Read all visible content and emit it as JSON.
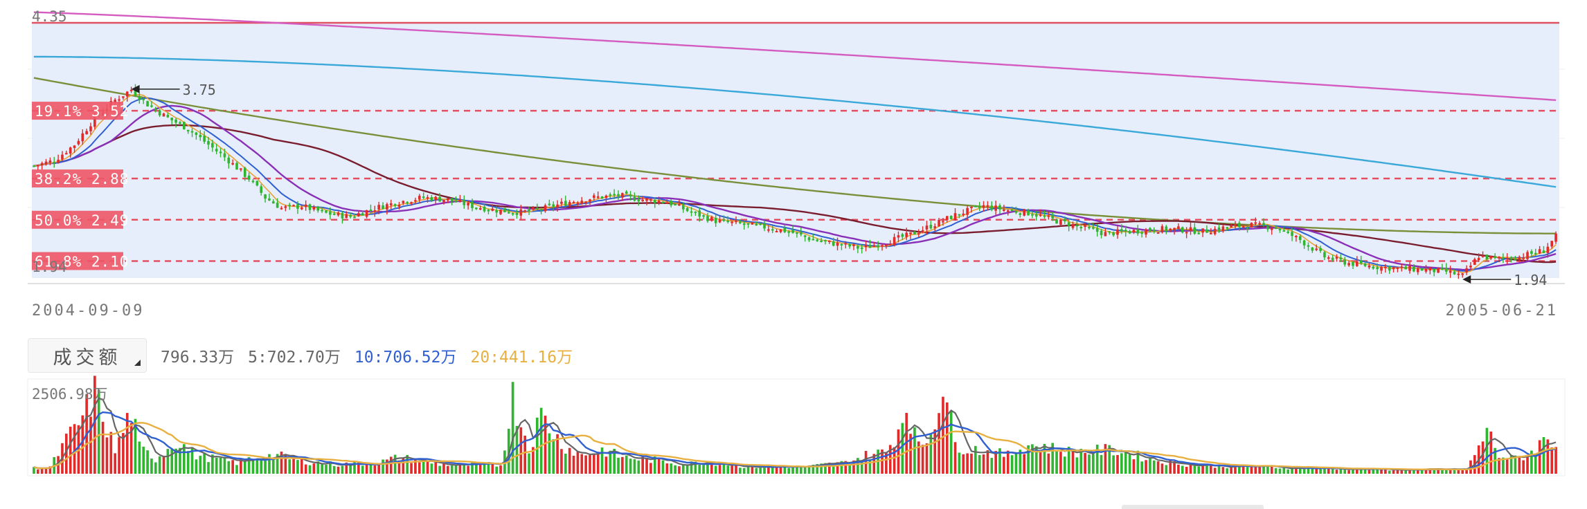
{
  "chart_data": {
    "type": "candlestick",
    "x_range": [
      "2004-09-09",
      "2005-06-21"
    ],
    "date_labels": {
      "start": "2004-09-09",
      "end": "2005-06-21"
    },
    "price_axis": {
      "max_label": "4.35",
      "min_label": "1.94",
      "ylim": [
        1.94,
        4.35
      ]
    },
    "annotations": {
      "high": "3.75",
      "low": "1.94"
    },
    "fib_levels": [
      {
        "label": "19.1% 3.52",
        "value": 3.52
      },
      {
        "label": "38.2% 2.88",
        "value": 2.88
      },
      {
        "label": "50.0% 2.49",
        "value": 2.49
      },
      {
        "label": "61.8% 2.10",
        "value": 2.1
      }
    ],
    "top_line": {
      "value": 4.35
    },
    "colors": {
      "up": "#e02b2b",
      "down": "#2fb52f",
      "fib": "#e05060",
      "band": "#e6eefb",
      "ma_pink": "#d45bbf",
      "ma_cyan": "#3aa8d8",
      "ma_olive": "#7a8f3a",
      "ma_maroon": "#7a1d2e",
      "ma_purple": "#8a2fb8",
      "ma_blue": "#2f5fd1",
      "ma_orange": "#e8a235",
      "vol_gray": "#666666",
      "vol_blue": "#2f5fd1",
      "vol_orange": "#e8b040"
    },
    "candle_anchors": [
      [
        0,
        3.0
      ],
      [
        5,
        3.05
      ],
      [
        10,
        3.2
      ],
      [
        15,
        3.45
      ],
      [
        20,
        3.62
      ],
      [
        24,
        3.72
      ],
      [
        28,
        3.58
      ],
      [
        33,
        3.45
      ],
      [
        38,
        3.35
      ],
      [
        43,
        3.2
      ],
      [
        48,
        3.05
      ],
      [
        53,
        2.88
      ],
      [
        57,
        2.7
      ],
      [
        61,
        2.6
      ],
      [
        66,
        2.62
      ],
      [
        72,
        2.55
      ],
      [
        78,
        2.52
      ],
      [
        84,
        2.6
      ],
      [
        90,
        2.66
      ],
      [
        96,
        2.7
      ],
      [
        102,
        2.68
      ],
      [
        108,
        2.62
      ],
      [
        114,
        2.58
      ],
      [
        120,
        2.56
      ],
      [
        126,
        2.6
      ],
      [
        132,
        2.66
      ],
      [
        138,
        2.7
      ],
      [
        144,
        2.72
      ],
      [
        150,
        2.68
      ],
      [
        156,
        2.66
      ],
      [
        162,
        2.56
      ],
      [
        168,
        2.48
      ],
      [
        174,
        2.45
      ],
      [
        180,
        2.42
      ],
      [
        186,
        2.38
      ],
      [
        192,
        2.3
      ],
      [
        198,
        2.26
      ],
      [
        204,
        2.22
      ],
      [
        210,
        2.28
      ],
      [
        216,
        2.35
      ],
      [
        222,
        2.45
      ],
      [
        228,
        2.55
      ],
      [
        234,
        2.62
      ],
      [
        240,
        2.58
      ],
      [
        246,
        2.55
      ],
      [
        252,
        2.48
      ],
      [
        258,
        2.42
      ],
      [
        264,
        2.36
      ],
      [
        270,
        2.38
      ],
      [
        276,
        2.4
      ],
      [
        282,
        2.4
      ],
      [
        288,
        2.38
      ],
      [
        294,
        2.42
      ],
      [
        300,
        2.44
      ],
      [
        306,
        2.42
      ],
      [
        312,
        2.3
      ],
      [
        318,
        2.14
      ],
      [
        324,
        2.08
      ],
      [
        330,
        2.05
      ],
      [
        336,
        2.03
      ],
      [
        342,
        2.02
      ],
      [
        348,
        2.0
      ],
      [
        352,
        1.96
      ],
      [
        356,
        2.15
      ],
      [
        360,
        2.12
      ],
      [
        366,
        2.14
      ],
      [
        372,
        2.2
      ],
      [
        375,
        2.33
      ]
    ],
    "volume_axis": {
      "max_label": "2506.98万",
      "max": 2506.98
    },
    "volume_header": {
      "button_label": "成交额",
      "current": "796.33万",
      "ma5": "5:702.70万",
      "ma10": "10:706.52万",
      "ma20": "20:441.16万"
    },
    "volume_anchors": [
      [
        0,
        150
      ],
      [
        4,
        180
      ],
      [
        8,
        900
      ],
      [
        12,
        1500
      ],
      [
        15,
        2200
      ],
      [
        17,
        1600
      ],
      [
        20,
        600
      ],
      [
        24,
        1700
      ],
      [
        26,
        700
      ],
      [
        30,
        400
      ],
      [
        35,
        900
      ],
      [
        40,
        500
      ],
      [
        45,
        400
      ],
      [
        50,
        300
      ],
      [
        55,
        450
      ],
      [
        60,
        500
      ],
      [
        65,
        350
      ],
      [
        70,
        300
      ],
      [
        75,
        250
      ],
      [
        80,
        280
      ],
      [
        85,
        300
      ],
      [
        90,
        450
      ],
      [
        95,
        350
      ],
      [
        100,
        260
      ],
      [
        105,
        230
      ],
      [
        110,
        250
      ],
      [
        115,
        230
      ],
      [
        118,
        2100
      ],
      [
        122,
        700
      ],
      [
        125,
        1600
      ],
      [
        130,
        800
      ],
      [
        135,
        500
      ],
      [
        140,
        650
      ],
      [
        145,
        450
      ],
      [
        150,
        400
      ],
      [
        155,
        350
      ],
      [
        160,
        250
      ],
      [
        165,
        320
      ],
      [
        170,
        280
      ],
      [
        175,
        200
      ],
      [
        180,
        180
      ],
      [
        185,
        200
      ],
      [
        190,
        180
      ],
      [
        195,
        250
      ],
      [
        200,
        300
      ],
      [
        205,
        500
      ],
      [
        210,
        600
      ],
      [
        213,
        1200
      ],
      [
        215,
        1900
      ],
      [
        218,
        700
      ],
      [
        221,
        1100
      ],
      [
        224,
        2500
      ],
      [
        227,
        800
      ],
      [
        230,
        700
      ],
      [
        235,
        600
      ],
      [
        240,
        500
      ],
      [
        245,
        800
      ],
      [
        250,
        700
      ],
      [
        255,
        600
      ],
      [
        260,
        600
      ],
      [
        265,
        650
      ],
      [
        270,
        550
      ],
      [
        275,
        400
      ],
      [
        280,
        300
      ],
      [
        285,
        250
      ],
      [
        290,
        220
      ],
      [
        295,
        200
      ],
      [
        300,
        200
      ],
      [
        305,
        180
      ],
      [
        310,
        160
      ],
      [
        315,
        150
      ],
      [
        320,
        140
      ],
      [
        325,
        130
      ],
      [
        330,
        120
      ],
      [
        335,
        110
      ],
      [
        340,
        110
      ],
      [
        345,
        110
      ],
      [
        350,
        120
      ],
      [
        353,
        120
      ],
      [
        356,
        700
      ],
      [
        358,
        1200
      ],
      [
        361,
        500
      ],
      [
        364,
        400
      ],
      [
        368,
        500
      ],
      [
        371,
        800
      ],
      [
        373,
        1000
      ],
      [
        375,
        796
      ]
    ]
  }
}
